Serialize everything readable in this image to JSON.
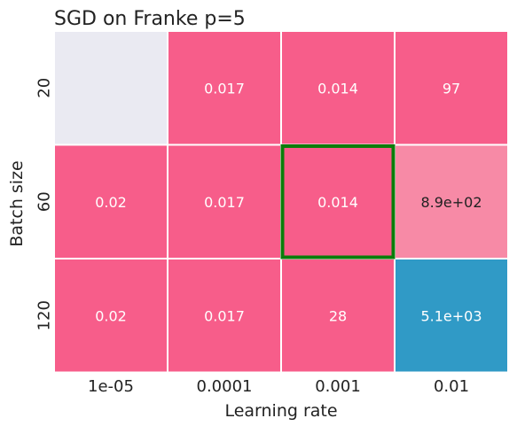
{
  "chart_data": {
    "type": "heatmap",
    "title": "SGD on Franke p=5",
    "xlabel": "Learning rate",
    "ylabel": "Batch size",
    "x_categories": [
      "1e-05",
      "0.0001",
      "0.001",
      "0.01"
    ],
    "y_categories": [
      "20",
      "60",
      "120"
    ],
    "values": [
      [
        null,
        0.017,
        0.014,
        97
      ],
      [
        0.02,
        0.017,
        0.014,
        890
      ],
      [
        0.02,
        0.017,
        28,
        5100
      ]
    ],
    "cell_labels": [
      [
        "",
        "0.017",
        "0.014",
        "97"
      ],
      [
        "0.02",
        "0.017",
        "0.014",
        "8.9e+02"
      ],
      [
        "0.02",
        "0.017",
        "28",
        "5.1e+03"
      ]
    ],
    "cell_colors": [
      [
        "#eaeaf2",
        "#f75d8a",
        "#f75d8a",
        "#f75d8a"
      ],
      [
        "#f75d8a",
        "#f75d8a",
        "#f75d8a",
        "#f78aa6"
      ],
      [
        "#f75d8a",
        "#f75d8a",
        "#f75d8a",
        "#309ac6"
      ]
    ],
    "cell_text_colors": [
      [
        "#ffffff",
        "#ffffff",
        "#ffffff",
        "#ffffff"
      ],
      [
        "#ffffff",
        "#ffffff",
        "#ffffff",
        "#222222"
      ],
      [
        "#ffffff",
        "#ffffff",
        "#ffffff",
        "#ffffff"
      ]
    ],
    "highlight": {
      "row": 1,
      "col": 2,
      "color": "#0a7d0a"
    },
    "colorbar": false,
    "grid": false
  }
}
